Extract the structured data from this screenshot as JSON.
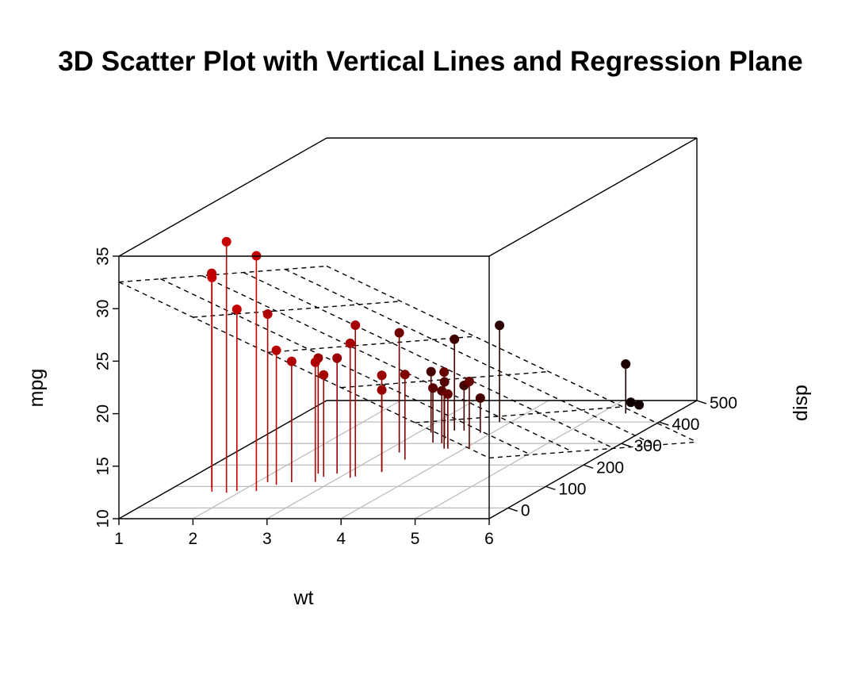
{
  "chart_data": {
    "type": "scatter",
    "title": "3D Scatter Plot with Vertical Lines and Regression Plane",
    "xlabel": "wt",
    "ylabel": "disp",
    "zlabel": "mpg",
    "x_ticks": [
      "1",
      "2",
      "3",
      "4",
      "5",
      "6"
    ],
    "y_ticks": [
      "0",
      "100",
      "200",
      "300",
      "400",
      "500"
    ],
    "z_ticks": [
      "10",
      "15",
      "20",
      "25",
      "30",
      "35"
    ],
    "xlim": [
      1,
      6
    ],
    "ylim": [
      -50,
      500
    ],
    "zlim": [
      10,
      35
    ],
    "grid": true,
    "vertical_lines": true,
    "regression_plane": true,
    "color_high": "#FF0000",
    "color_low": "#000000",
    "points": [
      {
        "wt": 2.62,
        "disp": 160.0,
        "mpg": 21.0
      },
      {
        "wt": 2.875,
        "disp": 160.0,
        "mpg": 21.0
      },
      {
        "wt": 2.32,
        "disp": 108.0,
        "mpg": 22.8
      },
      {
        "wt": 3.215,
        "disp": 258.0,
        "mpg": 21.4
      },
      {
        "wt": 3.44,
        "disp": 360.0,
        "mpg": 18.7
      },
      {
        "wt": 3.46,
        "disp": 225.0,
        "mpg": 18.1
      },
      {
        "wt": 3.57,
        "disp": 360.0,
        "mpg": 14.3
      },
      {
        "wt": 3.19,
        "disp": 146.7,
        "mpg": 24.4
      },
      {
        "wt": 3.15,
        "disp": 140.8,
        "mpg": 22.8
      },
      {
        "wt": 3.44,
        "disp": 167.6,
        "mpg": 19.2
      },
      {
        "wt": 3.44,
        "disp": 167.6,
        "mpg": 17.8
      },
      {
        "wt": 4.07,
        "disp": 275.8,
        "mpg": 16.4
      },
      {
        "wt": 3.73,
        "disp": 275.8,
        "mpg": 17.3
      },
      {
        "wt": 3.78,
        "disp": 275.8,
        "mpg": 15.2
      },
      {
        "wt": 5.25,
        "disp": 472.0,
        "mpg": 10.4
      },
      {
        "wt": 5.424,
        "disp": 460.0,
        "mpg": 10.4
      },
      {
        "wt": 5.345,
        "disp": 440.0,
        "mpg": 14.7
      },
      {
        "wt": 2.2,
        "disp": 78.7,
        "mpg": 32.4
      },
      {
        "wt": 1.615,
        "disp": 75.7,
        "mpg": 30.4
      },
      {
        "wt": 1.835,
        "disp": 71.1,
        "mpg": 33.9
      },
      {
        "wt": 2.465,
        "disp": 120.1,
        "mpg": 21.5
      },
      {
        "wt": 3.52,
        "disp": 318.0,
        "mpg": 15.5
      },
      {
        "wt": 3.435,
        "disp": 304.0,
        "mpg": 15.2
      },
      {
        "wt": 3.84,
        "disp": 350.0,
        "mpg": 13.3
      },
      {
        "wt": 3.845,
        "disp": 400.0,
        "mpg": 19.2
      },
      {
        "wt": 1.935,
        "disp": 79.0,
        "mpg": 27.3
      },
      {
        "wt": 2.14,
        "disp": 120.3,
        "mpg": 26.0
      },
      {
        "wt": 1.513,
        "disp": 95.1,
        "mpg": 30.4
      },
      {
        "wt": 3.17,
        "disp": 351.0,
        "mpg": 15.8
      },
      {
        "wt": 2.77,
        "disp": 145.0,
        "mpg": 19.7
      },
      {
        "wt": 3.57,
        "disp": 301.0,
        "mpg": 15.0
      },
      {
        "wt": 2.78,
        "disp": 121.0,
        "mpg": 21.4
      }
    ],
    "plane": {
      "intercept": 35.0,
      "wt_coef": -3.35,
      "disp_coef": -0.0177
    }
  }
}
